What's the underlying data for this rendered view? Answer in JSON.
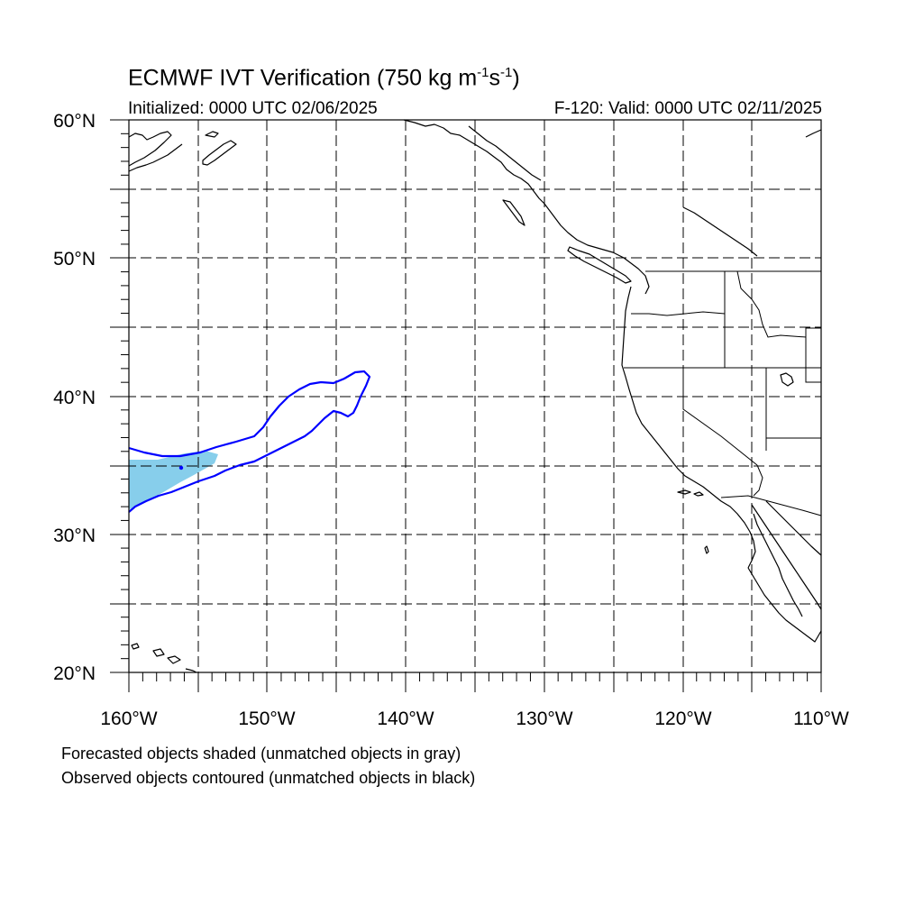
{
  "header": {
    "title_main": "ECMWF IVT Verification (750 kg m",
    "title_sup1": "-1",
    "title_mid": "s",
    "title_sup2": "-1",
    "title_end": ")",
    "initialized": "Initialized: 0000 UTC 02/06/2025",
    "valid": "F-120: Valid: 0000 UTC 02/11/2025"
  },
  "map": {
    "lat_labels": [
      "60°N",
      "50°N",
      "40°N",
      "30°N",
      "20°N"
    ],
    "lon_labels": [
      "160°W",
      "150°W",
      "140°W",
      "130°W",
      "120°W",
      "110°W"
    ],
    "extent": {
      "lon_min": -160,
      "lon_max": -110,
      "lat_min": 20,
      "lat_max": 60
    },
    "gridlines": "dashed",
    "forecast_fill_color": "#87ceeb",
    "observed_contour_color": "#0000ff",
    "coastline_color": "#000000"
  },
  "footer": {
    "line1": "Forecasted objects shaded (unmatched objects in gray)",
    "line2": "Observed objects contoured (unmatched objects in black)"
  }
}
